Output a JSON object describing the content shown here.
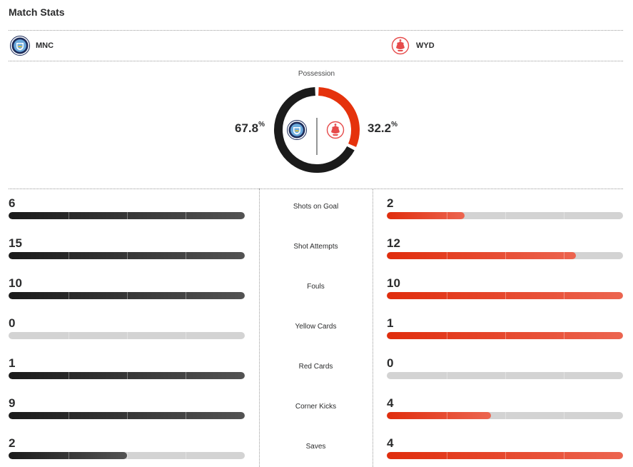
{
  "header": {
    "title": "Match Stats"
  },
  "teams": {
    "home": {
      "abbr": "MNC",
      "logo": "man-city-crest-icon",
      "color": "#1a1a1a"
    },
    "away": {
      "abbr": "WYD",
      "logo": "wydad-crest-icon",
      "color": "#e02d0d"
    }
  },
  "possession": {
    "label": "Possession",
    "home_value": "67.8",
    "away_value": "32.2",
    "unit": "%",
    "home_fraction": 0.678,
    "away_fraction": 0.322
  },
  "stats": [
    {
      "label": "Shots on Goal",
      "home": "6",
      "away": "2",
      "home_fraction": 1.0,
      "away_fraction": 0.33
    },
    {
      "label": "Shot Attempts",
      "home": "15",
      "away": "12",
      "home_fraction": 1.0,
      "away_fraction": 0.8
    },
    {
      "label": "Fouls",
      "home": "10",
      "away": "10",
      "home_fraction": 1.0,
      "away_fraction": 1.0
    },
    {
      "label": "Yellow Cards",
      "home": "0",
      "away": "1",
      "home_fraction": 0.0,
      "away_fraction": 1.0
    },
    {
      "label": "Red Cards",
      "home": "1",
      "away": "0",
      "home_fraction": 1.0,
      "away_fraction": 0.0
    },
    {
      "label": "Corner Kicks",
      "home": "9",
      "away": "4",
      "home_fraction": 1.0,
      "away_fraction": 0.44
    },
    {
      "label": "Saves",
      "home": "2",
      "away": "4",
      "home_fraction": 0.5,
      "away_fraction": 1.0
    }
  ]
}
